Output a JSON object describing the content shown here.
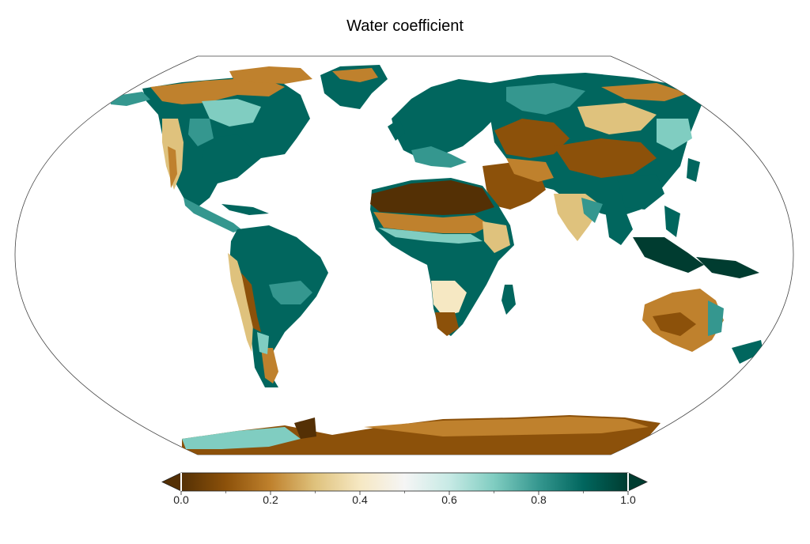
{
  "title": "Water coefficient",
  "colormap": {
    "name": "BrBG",
    "stops": [
      "#543005",
      "#8c510a",
      "#bf812d",
      "#dfc27d",
      "#f6e8c3",
      "#f5f5f5",
      "#c7eae5",
      "#80cdc1",
      "#35978f",
      "#01665e",
      "#003c30"
    ]
  },
  "colorbar": {
    "min": 0.0,
    "max": 1.0,
    "extend": "both",
    "ticks": [
      {
        "value": 0.0,
        "label": "0.0"
      },
      {
        "value": 0.2,
        "label": "0.2"
      },
      {
        "value": 0.4,
        "label": "0.4"
      },
      {
        "value": 0.6,
        "label": "0.6"
      },
      {
        "value": 0.8,
        "label": "0.8"
      },
      {
        "value": 1.0,
        "label": "1.0"
      }
    ],
    "minor_ticks": [
      0.1,
      0.3,
      0.5,
      0.7,
      0.9
    ]
  },
  "projection": "Robinson"
}
